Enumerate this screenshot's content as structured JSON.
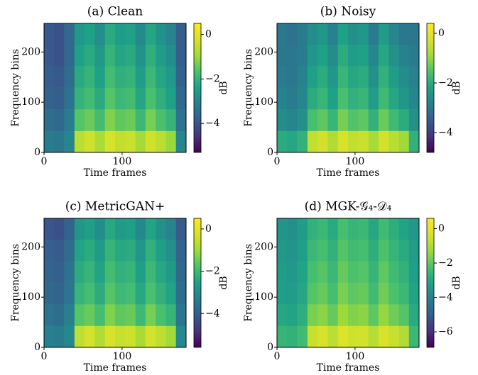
{
  "chart_data": [
    {
      "type": "heatmap",
      "title": "(a) Clean",
      "x_label": "Time frames",
      "y_label": "Frequency bins",
      "xlim": [
        0,
        182
      ],
      "ylim": [
        0,
        257
      ],
      "xticks": [
        0,
        100
      ],
      "yticks": [
        0,
        100,
        200
      ],
      "x_bins": [
        0,
        13,
        26,
        39,
        52,
        65,
        78,
        91,
        104,
        117,
        130,
        143,
        156,
        169,
        182
      ],
      "y_bins": [
        0,
        43,
        86,
        129,
        172,
        215,
        257
      ],
      "colormap": "viridis",
      "values": [
        [
          -3.2,
          -3.3,
          -3.0,
          -0.6,
          -0.3,
          -0.8,
          -0.2,
          -0.5,
          -0.4,
          -0.9,
          -0.3,
          -0.6,
          -1.0,
          -3.0
        ],
        [
          -3.5,
          -3.6,
          -3.2,
          -1.6,
          -1.4,
          -1.8,
          -1.2,
          -1.5,
          -1.4,
          -1.9,
          -1.3,
          -1.7,
          -2.0,
          -3.4
        ],
        [
          -3.7,
          -3.8,
          -3.4,
          -2.0,
          -1.8,
          -2.2,
          -1.6,
          -1.9,
          -1.8,
          -2.3,
          -1.7,
          -2.1,
          -2.4,
          -3.6
        ],
        [
          -3.8,
          -3.9,
          -3.5,
          -2.2,
          -2.0,
          -2.4,
          -1.8,
          -2.1,
          -2.0,
          -2.5,
          -1.9,
          -2.3,
          -2.6,
          -3.7
        ],
        [
          -3.9,
          -4.0,
          -3.6,
          -2.4,
          -2.2,
          -2.6,
          -2.0,
          -2.3,
          -2.2,
          -2.7,
          -2.1,
          -2.5,
          -2.8,
          -3.8
        ],
        [
          -3.9,
          -4.0,
          -3.6,
          -2.6,
          -2.4,
          -2.8,
          -2.2,
          -2.5,
          -2.4,
          -2.9,
          -2.3,
          -2.7,
          -3.0,
          -3.8
        ]
      ],
      "colorbar": {
        "label": "dB",
        "lim": [
          -5.3,
          0.5
        ],
        "ticks": [
          0,
          {
            "value": -2,
            "label": "−2"
          },
          {
            "value": -4,
            "label": "−4"
          }
        ]
      }
    },
    {
      "type": "heatmap",
      "title": "(b) Noisy",
      "x_label": "Time frames",
      "y_label": "Frequency bins",
      "xlim": [
        0,
        182
      ],
      "ylim": [
        0,
        257
      ],
      "xticks": [
        0,
        100
      ],
      "yticks": [
        0,
        100,
        200
      ],
      "x_bins": [
        0,
        13,
        26,
        39,
        52,
        65,
        78,
        91,
        104,
        117,
        130,
        143,
        156,
        169,
        182
      ],
      "y_bins": [
        0,
        43,
        86,
        129,
        172,
        215,
        257
      ],
      "colormap": "viridis",
      "values": [
        [
          -2.0,
          -2.1,
          -1.9,
          -0.5,
          -0.3,
          -0.7,
          -0.2,
          -0.5,
          -0.4,
          -0.8,
          -0.3,
          -0.6,
          -0.9,
          -1.9
        ],
        [
          -2.6,
          -2.7,
          -2.5,
          -1.6,
          -1.4,
          -1.8,
          -1.2,
          -1.5,
          -1.4,
          -1.9,
          -1.3,
          -1.7,
          -2.0,
          -2.5
        ],
        [
          -2.8,
          -2.9,
          -2.7,
          -2.0,
          -1.8,
          -2.2,
          -1.6,
          -1.9,
          -1.8,
          -2.3,
          -1.7,
          -2.1,
          -2.4,
          -2.7
        ],
        [
          -2.9,
          -3.0,
          -2.8,
          -2.2,
          -2.0,
          -2.4,
          -1.8,
          -2.1,
          -2.0,
          -2.5,
          -1.9,
          -2.3,
          -2.6,
          -2.8
        ],
        [
          -3.0,
          -3.0,
          -2.9,
          -2.4,
          -2.2,
          -2.6,
          -2.0,
          -2.3,
          -2.2,
          -2.7,
          -2.1,
          -2.5,
          -2.8,
          -2.9
        ],
        [
          -3.0,
          -3.1,
          -2.9,
          -2.6,
          -2.4,
          -2.8,
          -2.2,
          -2.5,
          -2.4,
          -2.9,
          -2.3,
          -2.7,
          -3.0,
          -3.0
        ]
      ],
      "colorbar": {
        "label": "dB",
        "lim": [
          -4.8,
          0.4
        ],
        "ticks": [
          0,
          {
            "value": -2,
            "label": "−2"
          },
          {
            "value": -4,
            "label": "−4"
          }
        ]
      }
    },
    {
      "type": "heatmap",
      "title": "(c) MetricGAN+",
      "x_label": "Time frames",
      "y_label": "Frequency bins",
      "xlim": [
        0,
        182
      ],
      "ylim": [
        0,
        257
      ],
      "xticks": [
        0,
        100
      ],
      "yticks": [
        0,
        100,
        200
      ],
      "x_bins": [
        0,
        13,
        26,
        39,
        52,
        65,
        78,
        91,
        104,
        117,
        130,
        143,
        156,
        169,
        182
      ],
      "y_bins": [
        0,
        43,
        86,
        129,
        172,
        215,
        257
      ],
      "colormap": "viridis",
      "values": [
        [
          -3.3,
          -3.4,
          -3.1,
          -0.6,
          -0.3,
          -0.8,
          -0.2,
          -0.5,
          -0.4,
          -0.9,
          -0.3,
          -0.6,
          -1.0,
          -3.1
        ],
        [
          -3.6,
          -3.7,
          -3.3,
          -1.7,
          -1.5,
          -1.9,
          -1.3,
          -1.6,
          -1.5,
          -2.0,
          -1.4,
          -1.8,
          -2.1,
          -3.5
        ],
        [
          -3.8,
          -3.9,
          -3.5,
          -2.1,
          -1.9,
          -2.3,
          -1.7,
          -2.0,
          -1.9,
          -2.4,
          -1.8,
          -2.2,
          -2.5,
          -3.7
        ],
        [
          -3.9,
          -4.0,
          -3.6,
          -2.3,
          -2.1,
          -2.5,
          -1.9,
          -2.2,
          -2.1,
          -2.6,
          -2.0,
          -2.4,
          -2.7,
          -3.8
        ],
        [
          -4.0,
          -4.1,
          -3.7,
          -2.5,
          -2.3,
          -2.7,
          -2.1,
          -2.4,
          -2.3,
          -2.8,
          -2.2,
          -2.6,
          -2.9,
          -3.9
        ],
        [
          -4.2,
          -4.3,
          -3.9,
          -2.8,
          -2.6,
          -3.0,
          -2.4,
          -2.7,
          -2.6,
          -3.1,
          -2.5,
          -2.9,
          -3.2,
          -4.1
        ]
      ],
      "colorbar": {
        "label": "dB",
        "lim": [
          -5.6,
          0.5
        ],
        "ticks": [
          0,
          {
            "value": -2,
            "label": "−2"
          },
          {
            "value": -4,
            "label": "−4"
          }
        ]
      }
    },
    {
      "type": "heatmap",
      "title": "(d) MGK-𝒢₄-𝒟₄",
      "x_label": "Time frames",
      "y_label": "Frequency bins",
      "xlim": [
        0,
        182
      ],
      "ylim": [
        0,
        257
      ],
      "xticks": [
        0,
        100
      ],
      "yticks": [
        0,
        100,
        200
      ],
      "x_bins": [
        0,
        13,
        26,
        39,
        52,
        65,
        78,
        91,
        104,
        117,
        130,
        143,
        156,
        169,
        182
      ],
      "y_bins": [
        0,
        43,
        86,
        129,
        172,
        215,
        257
      ],
      "colormap": "viridis",
      "values": [
        [
          -2.6,
          -2.7,
          -2.4,
          -0.6,
          -0.3,
          -0.8,
          -0.2,
          -0.5,
          -0.4,
          -0.9,
          -0.3,
          -0.6,
          -1.0,
          -2.5
        ],
        [
          -3.0,
          -3.1,
          -2.8,
          -1.7,
          -1.5,
          -1.9,
          -1.3,
          -1.6,
          -1.5,
          -2.0,
          -1.4,
          -1.8,
          -2.1,
          -2.9
        ],
        [
          -3.2,
          -3.3,
          -3.0,
          -2.1,
          -1.9,
          -2.3,
          -1.7,
          -2.0,
          -1.9,
          -2.4,
          -1.8,
          -2.2,
          -2.5,
          -3.1
        ],
        [
          -3.3,
          -3.4,
          -3.1,
          -2.3,
          -2.1,
          -2.5,
          -1.9,
          -2.2,
          -2.1,
          -2.6,
          -2.0,
          -2.4,
          -2.7,
          -3.2
        ],
        [
          -3.4,
          -3.5,
          -3.2,
          -2.5,
          -2.3,
          -2.7,
          -2.1,
          -2.4,
          -2.3,
          -2.8,
          -2.2,
          -2.6,
          -2.9,
          -3.3
        ],
        [
          -3.5,
          -3.6,
          -3.3,
          -2.7,
          -2.5,
          -2.9,
          -2.3,
          -2.6,
          -2.5,
          -3.0,
          -2.4,
          -2.8,
          -3.1,
          -3.4
        ]
      ],
      "colorbar": {
        "label": "dB",
        "lim": [
          -6.9,
          0.6
        ],
        "ticks": [
          0,
          {
            "value": -2,
            "label": "−2"
          },
          {
            "value": -4,
            "label": "−4"
          },
          {
            "value": -6,
            "label": "−6"
          }
        ]
      }
    }
  ]
}
